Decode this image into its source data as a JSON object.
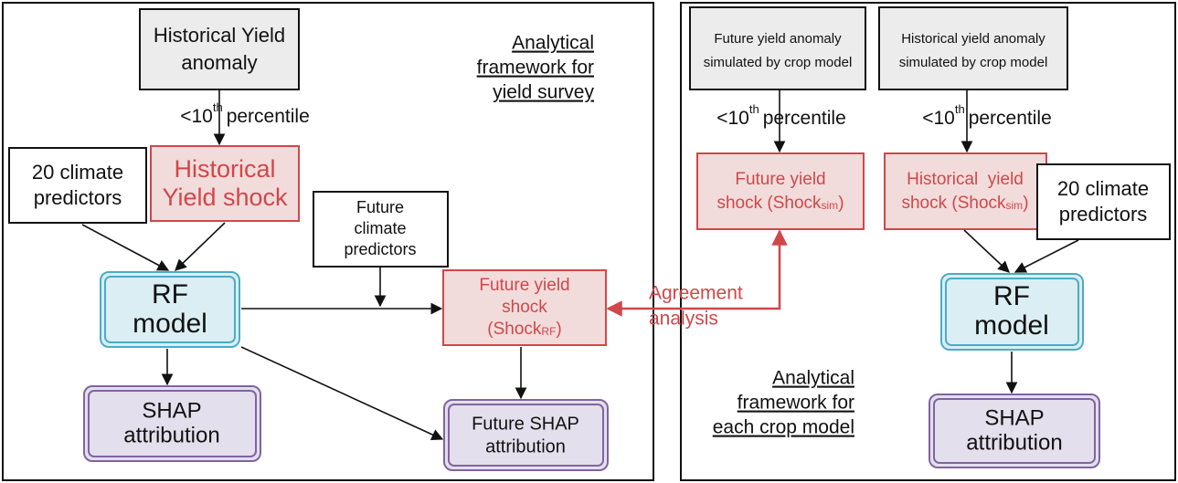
{
  "left_panel": {
    "title": [
      "Analytical",
      "framework for",
      "yield survey"
    ],
    "historical_yield_anomaly": [
      "Historical Yield",
      "anomaly"
    ],
    "threshold": {
      "prefix": "<10",
      "sup": "th",
      "suffix": "percentile"
    },
    "historical_yield_shock": [
      "Historical",
      "Yield shock"
    ],
    "climate_predictors": [
      "20 climate",
      "predictors"
    ],
    "future_climate_predictors": [
      "Future",
      "climate",
      "predictors"
    ],
    "rf_model": [
      "RF",
      "model"
    ],
    "future_yield_shock": {
      "lines": [
        "Future yield",
        "shock"
      ],
      "open": "(Shock",
      "sub": "RF",
      "close": ")"
    },
    "shap_attribution": [
      "SHAP",
      "attribution"
    ],
    "future_shap_attribution": [
      "Future SHAP",
      "attribution"
    ]
  },
  "agreement": [
    "Agreement",
    "analysis"
  ],
  "right_panel": {
    "title": [
      "Analytical",
      "framework for",
      "each crop model"
    ],
    "future_yield_anomaly": [
      "Future yield anomaly",
      "simulated by crop model"
    ],
    "historical_yield_anomaly": [
      "Historical yield anomaly",
      "simulated by crop model"
    ],
    "threshold_future": {
      "prefix": "<10",
      "sup": "th",
      "suffix": "percentile"
    },
    "threshold_historical": {
      "prefix": "<10",
      "sup": "th",
      "suffix": "percentile"
    },
    "future_yield_shock": {
      "line": "Future yield",
      "open": "shock (Shock",
      "sub": "sim",
      "close": ")"
    },
    "historical_yield_shock": {
      "line": "Historical  yield",
      "open": "shock (Shock",
      "sub": "sim",
      "close": ")"
    },
    "climate_predictors": [
      "20 climate",
      "predictors"
    ],
    "rf_model": [
      "RF",
      "model"
    ],
    "shap_attribution": [
      "SHAP",
      "attribution"
    ]
  }
}
